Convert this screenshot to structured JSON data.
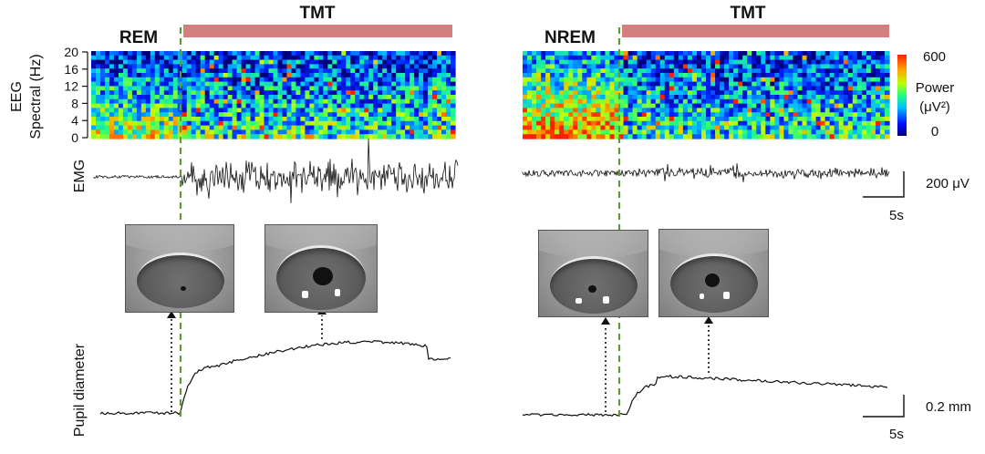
{
  "left_panel": {
    "state": "REM",
    "stim": "TMT"
  },
  "right_panel": {
    "state": "NREM",
    "stim": "TMT"
  },
  "eeg": {
    "ylabel_line1": "EEG",
    "ylabel_line2": "Spectral (Hz)",
    "yticks": [
      "0",
      "4",
      "8",
      "12",
      "16",
      "20"
    ]
  },
  "colorbar": {
    "max": "600",
    "min": "0",
    "label_line1": "Power",
    "label_line2": "(μV²)"
  },
  "emg": {
    "label": "EMG",
    "scale_amp": "200 μV",
    "scale_time": "5s"
  },
  "pupil": {
    "label": "Pupil diameter",
    "scale_amp": "0.2 mm",
    "scale_time": "5s"
  },
  "colors": {
    "tmt_bar": "#d47f7f",
    "onset_line": "#5e9a36",
    "trace": "#111111"
  }
}
